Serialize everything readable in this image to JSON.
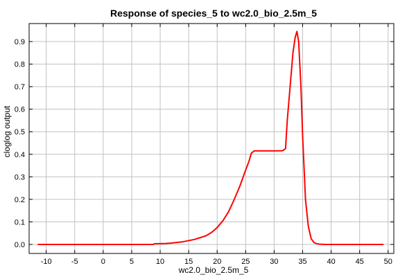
{
  "chart_data": {
    "type": "line",
    "title": "Response of species_5 to wc2.0_bio_2.5m_5",
    "xlabel": "wc2.0_bio_2.5m_5",
    "ylabel": "cloglog output",
    "xlim": [
      -13,
      51
    ],
    "ylim": [
      -0.04,
      0.98
    ],
    "xticks": [
      -10,
      -5,
      0,
      5,
      10,
      15,
      20,
      25,
      30,
      35,
      40,
      45,
      50
    ],
    "yticks": [
      0.0,
      0.1,
      0.2,
      0.3,
      0.4,
      0.5,
      0.6,
      0.7,
      0.8,
      0.9
    ],
    "grid": true,
    "line_color": "#ff0000",
    "series": [
      {
        "x": [
          -11.5,
          8.8,
          9.0,
          11.0,
          12.0,
          14.0,
          16.0,
          18.0,
          19.0,
          20.0,
          21.0,
          22.0,
          23.0,
          24.0,
          25.0,
          25.6,
          26.0,
          26.5,
          28.0,
          30.0,
          31.5,
          32.0,
          32.3,
          32.8,
          33.3,
          33.7,
          34.0,
          34.3,
          34.7,
          35.0,
          35.5,
          36.0,
          36.5,
          37.0,
          37.5,
          38.0,
          39.0,
          49.2
        ],
        "y": [
          0.0,
          0.0,
          0.003,
          0.004,
          0.006,
          0.012,
          0.022,
          0.038,
          0.053,
          0.075,
          0.105,
          0.145,
          0.2,
          0.26,
          0.33,
          0.37,
          0.405,
          0.415,
          0.415,
          0.415,
          0.416,
          0.425,
          0.55,
          0.7,
          0.85,
          0.92,
          0.945,
          0.9,
          0.7,
          0.48,
          0.2,
          0.08,
          0.025,
          0.008,
          0.003,
          0.001,
          0.0,
          0.0
        ]
      }
    ]
  }
}
